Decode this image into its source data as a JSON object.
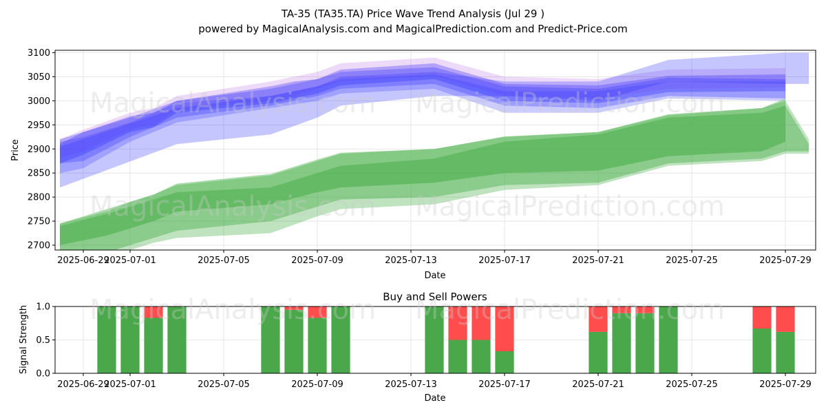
{
  "chart_data": [
    {
      "type": "area",
      "title": "TA-35 (TA35.TA) Price Wave Trend Analysis (Jul 29 )",
      "subtitle": "powered by MagicalAnalysis.com and MagicalPrediction.com and Predict-Price.com",
      "xlabel": "Date",
      "ylabel": "Price",
      "ylim": [
        2690,
        3105
      ],
      "xlim": [
        "2025-06-28",
        "2025-07-30"
      ],
      "x_ticks": [
        "2025-06-29",
        "2025-07-01",
        "2025-07-05",
        "2025-07-09",
        "2025-07-13",
        "2025-07-17",
        "2025-07-21",
        "2025-07-25",
        "2025-07-29"
      ],
      "y_ticks": [
        2700,
        2750,
        2800,
        2850,
        2900,
        2950,
        3000,
        3050,
        3100
      ],
      "grid": true,
      "colors": {
        "blue": "#3333ff",
        "violet": "#aa55dd",
        "green": "#2ca02c",
        "green_light": "#8fd08f"
      },
      "series": [
        {
          "x": [
            "2025-06-28",
            "2025-06-29",
            "2025-07-01",
            "2025-07-02",
            "2025-07-03",
            "2025-07-07",
            "2025-07-08",
            "2025-07-09",
            "2025-07-10",
            "2025-07-14",
            "2025-07-17",
            "2025-07-21",
            "2025-07-24",
            "2025-07-29"
          ],
          "upper": [
            2910,
            2935,
            2968,
            2975,
            3000,
            3030,
            3040,
            3045,
            3065,
            3078,
            3035,
            3032,
            3052,
            3055
          ],
          "lower": [
            2870,
            2888,
            2935,
            2945,
            2975,
            2995,
            3005,
            3015,
            3032,
            3045,
            3000,
            2995,
            3018,
            3020
          ]
        },
        {
          "x": [
            "2025-06-28",
            "2025-06-29",
            "2025-07-01",
            "2025-07-02",
            "2025-07-03",
            "2025-07-07",
            "2025-07-08",
            "2025-07-09",
            "2025-07-10",
            "2025-07-14",
            "2025-07-17",
            "2025-07-21",
            "2025-07-24",
            "2025-07-29"
          ],
          "upper": [
            2920,
            2940,
            2975,
            2985,
            3010,
            3040,
            3050,
            3060,
            3078,
            3090,
            3050,
            3045,
            3065,
            3068
          ],
          "lower": [
            2880,
            2895,
            2940,
            2950,
            2980,
            3000,
            3010,
            3025,
            3040,
            3052,
            3010,
            3005,
            3025,
            3028
          ]
        },
        {
          "x": [
            "2025-06-28",
            "2025-07-03",
            "2025-07-07",
            "2025-07-09",
            "2025-07-10",
            "2025-07-14",
            "2025-07-17",
            "2025-07-21",
            "2025-07-24",
            "2025-07-29",
            "2025-07-30"
          ],
          "upper": [
            2905,
            2985,
            3010,
            3030,
            3050,
            3060,
            3040,
            3040,
            3085,
            3100,
            3100
          ],
          "lower": [
            2820,
            2910,
            2930,
            2965,
            2990,
            3010,
            3010,
            3000,
            3040,
            3035,
            3035
          ]
        },
        {
          "x": [
            "2025-06-28",
            "2025-06-29",
            "2025-07-01",
            "2025-07-03",
            "2025-07-07",
            "2025-07-09",
            "2025-07-10",
            "2025-07-14",
            "2025-07-17",
            "2025-07-21",
            "2025-07-24",
            "2025-07-29"
          ],
          "upper": [
            2920,
            2935,
            2965,
            3000,
            3025,
            3045,
            3060,
            3070,
            3030,
            3025,
            3048,
            3045
          ],
          "lower": [
            2870,
            2875,
            2925,
            2965,
            2990,
            3010,
            3025,
            3035,
            2990,
            2985,
            3010,
            3005
          ]
        },
        {
          "x": [
            "2025-06-28",
            "2025-06-29",
            "2025-07-01",
            "2025-07-03",
            "2025-07-07",
            "2025-07-09",
            "2025-07-10",
            "2025-07-14",
            "2025-07-17",
            "2025-07-21",
            "2025-07-24",
            "2025-07-29"
          ],
          "upper": [
            2915,
            2925,
            2955,
            2995,
            3010,
            3030,
            3045,
            3055,
            3020,
            3020,
            3040,
            3040
          ],
          "lower": [
            2850,
            2860,
            2915,
            2955,
            2985,
            3000,
            3015,
            3025,
            2975,
            2975,
            3005,
            3000
          ]
        },
        {
          "x": [
            "2025-06-28",
            "2025-06-30",
            "2025-07-01",
            "2025-07-02",
            "2025-07-03",
            "2025-07-07",
            "2025-07-09",
            "2025-07-10",
            "2025-07-14",
            "2025-07-17",
            "2025-07-21",
            "2025-07-24",
            "2025-07-28",
            "2025-07-29"
          ],
          "upper": [
            2745,
            2775,
            2790,
            2805,
            2828,
            2848,
            2878,
            2892,
            2900,
            2926,
            2935,
            2972,
            2985,
            3005
          ],
          "lower": [
            2700,
            2720,
            2735,
            2750,
            2770,
            2785,
            2810,
            2820,
            2830,
            2850,
            2855,
            2885,
            2895,
            2915
          ]
        },
        {
          "x": [
            "2025-06-28",
            "2025-06-30",
            "2025-07-01",
            "2025-07-02",
            "2025-07-03",
            "2025-07-07",
            "2025-07-09",
            "2025-07-10",
            "2025-07-14",
            "2025-07-17",
            "2025-07-21",
            "2025-07-24",
            "2025-07-28",
            "2025-07-29",
            "2025-07-30"
          ],
          "upper": [
            2740,
            2765,
            2780,
            2795,
            2810,
            2820,
            2850,
            2865,
            2880,
            2915,
            2930,
            2965,
            2975,
            2990,
            2910
          ],
          "lower": [
            2650,
            2685,
            2700,
            2715,
            2730,
            2750,
            2780,
            2795,
            2800,
            2825,
            2830,
            2870,
            2880,
            2895,
            2895
          ]
        },
        {
          "x": [
            "2025-06-28",
            "2025-06-30",
            "2025-07-01",
            "2025-07-02",
            "2025-07-03",
            "2025-07-07",
            "2025-07-09",
            "2025-07-10",
            "2025-07-14",
            "2025-07-17",
            "2025-07-21",
            "2025-07-24",
            "2025-07-28",
            "2025-07-29",
            "2025-07-30"
          ],
          "upper": [
            2745,
            2770,
            2790,
            2805,
            2825,
            2845,
            2875,
            2890,
            2900,
            2925,
            2935,
            2970,
            2985,
            3000,
            2920
          ],
          "lower": [
            2640,
            2670,
            2690,
            2705,
            2715,
            2725,
            2760,
            2775,
            2785,
            2815,
            2825,
            2865,
            2875,
            2890,
            2890
          ]
        }
      ]
    },
    {
      "type": "bar",
      "title": "Buy and Sell Powers",
      "xlabel": "Date",
      "ylabel": "Signal Strength",
      "ylim": [
        0,
        1
      ],
      "xlim": [
        "2025-06-28",
        "2025-07-30"
      ],
      "x_ticks": [
        "2025-06-29",
        "2025-07-01",
        "2025-07-05",
        "2025-07-09",
        "2025-07-13",
        "2025-07-17",
        "2025-07-21",
        "2025-07-25",
        "2025-07-29"
      ],
      "y_ticks": [
        "0.0",
        "0.5",
        "1.0"
      ],
      "grid": true,
      "colors": {
        "buy": "#4aa84a",
        "sell": "#ff4c4c"
      },
      "bars": [
        {
          "date": "2025-06-30",
          "buy": 1.0,
          "sell": 0.0
        },
        {
          "date": "2025-07-01",
          "buy": 1.0,
          "sell": 0.0
        },
        {
          "date": "2025-07-02",
          "buy": 0.83,
          "sell": 0.17
        },
        {
          "date": "2025-07-03",
          "buy": 1.0,
          "sell": 0.0
        },
        {
          "date": "2025-07-07",
          "buy": 1.0,
          "sell": 0.0
        },
        {
          "date": "2025-07-08",
          "buy": 0.95,
          "sell": 0.05
        },
        {
          "date": "2025-07-09",
          "buy": 0.83,
          "sell": 0.17
        },
        {
          "date": "2025-07-10",
          "buy": 1.0,
          "sell": 0.0
        },
        {
          "date": "2025-07-14",
          "buy": 1.0,
          "sell": 0.0
        },
        {
          "date": "2025-07-15",
          "buy": 0.5,
          "sell": 0.5
        },
        {
          "date": "2025-07-16",
          "buy": 0.5,
          "sell": 0.5
        },
        {
          "date": "2025-07-17",
          "buy": 0.33,
          "sell": 0.67
        },
        {
          "date": "2025-07-21",
          "buy": 0.62,
          "sell": 0.38
        },
        {
          "date": "2025-07-22",
          "buy": 0.9,
          "sell": 0.1
        },
        {
          "date": "2025-07-23",
          "buy": 0.9,
          "sell": 0.1
        },
        {
          "date": "2025-07-24",
          "buy": 1.0,
          "sell": 0.0
        },
        {
          "date": "2025-07-28",
          "buy": 0.67,
          "sell": 0.33
        },
        {
          "date": "2025-07-29",
          "buy": 0.62,
          "sell": 0.38
        }
      ]
    }
  ],
  "watermarks": [
    "MagicalAnalysis.com",
    "MagicalPrediction.com"
  ]
}
